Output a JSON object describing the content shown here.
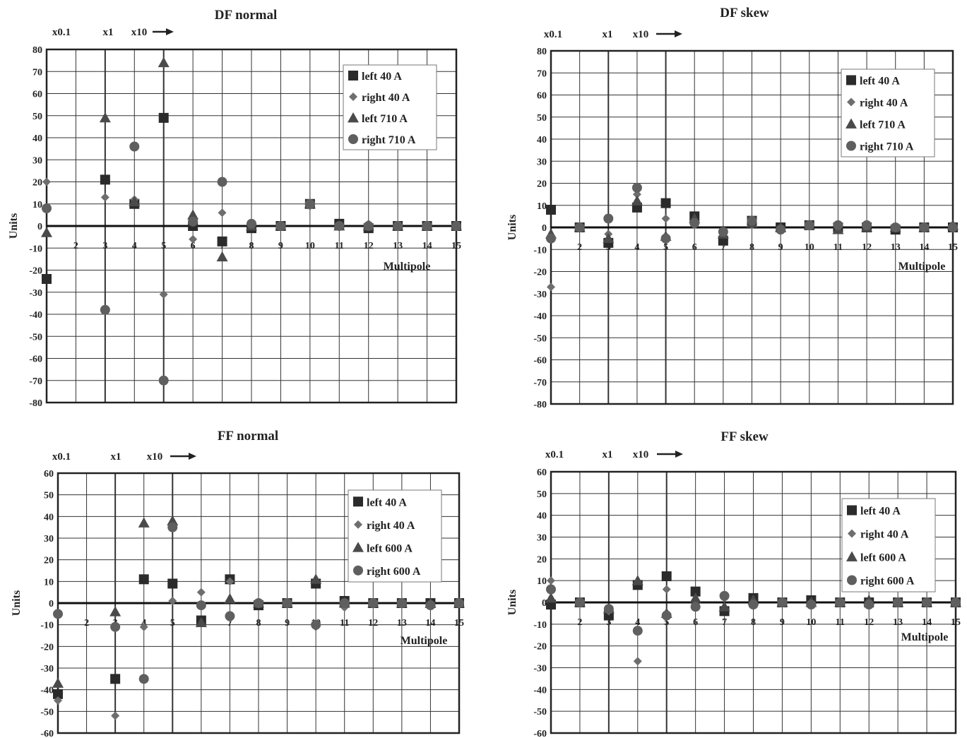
{
  "chart_data": [
    {
      "type": "scatter",
      "title": "DF normal",
      "xlabel": "Multipole",
      "ylabel": "Units",
      "scale_labels": [
        "x0.1",
        "x1",
        "x10"
      ],
      "scale_arrow": "→",
      "xlim": [
        1,
        15
      ],
      "ylim": [
        -80,
        80
      ],
      "ystep": 10,
      "grid": true,
      "legend_position": "top-right",
      "series": [
        {
          "name": "left 40 A",
          "marker": "square",
          "points": [
            [
              1,
              -24
            ],
            [
              3,
              21
            ],
            [
              4,
              10
            ],
            [
              5,
              49
            ],
            [
              6,
              0
            ],
            [
              7,
              -7
            ],
            [
              8,
              -1
            ],
            [
              9,
              0
            ],
            [
              10,
              10
            ],
            [
              11,
              1
            ],
            [
              12,
              -1
            ],
            [
              13,
              0
            ],
            [
              14,
              0
            ],
            [
              15,
              0
            ]
          ]
        },
        {
          "name": "right 40 A",
          "marker": "diamond",
          "points": [
            [
              1,
              20
            ],
            [
              3,
              13
            ],
            [
              4,
              12
            ],
            [
              5,
              -31
            ],
            [
              6,
              -6
            ],
            [
              7,
              6
            ],
            [
              8,
              0
            ],
            [
              9,
              0
            ],
            [
              10,
              9
            ],
            [
              11,
              0
            ],
            [
              12,
              1
            ],
            [
              13,
              0
            ],
            [
              14,
              0
            ],
            [
              15,
              0
            ]
          ]
        },
        {
          "name": "left 710 A",
          "marker": "triangle",
          "points": [
            [
              1,
              -3
            ],
            [
              3,
              49
            ],
            [
              4,
              11
            ],
            [
              5,
              74
            ],
            [
              6,
              5
            ],
            [
              7,
              -14
            ],
            [
              8,
              0
            ],
            [
              9,
              0
            ],
            [
              10,
              10
            ],
            [
              11,
              0
            ],
            [
              12,
              0
            ],
            [
              13,
              0
            ],
            [
              14,
              0
            ],
            [
              15,
              0
            ]
          ]
        },
        {
          "name": "right 710 A",
          "marker": "circle",
          "points": [
            [
              1,
              8
            ],
            [
              3,
              -38
            ],
            [
              4,
              36
            ],
            [
              5,
              -70
            ],
            [
              6,
              2
            ],
            [
              7,
              20
            ],
            [
              8,
              1
            ],
            [
              9,
              0
            ],
            [
              10,
              10
            ],
            [
              11,
              0
            ],
            [
              12,
              0
            ],
            [
              13,
              0
            ],
            [
              14,
              0
            ],
            [
              15,
              0
            ]
          ]
        }
      ]
    },
    {
      "type": "scatter",
      "title": "DF skew",
      "xlabel": "Multipole",
      "ylabel": "Units",
      "scale_labels": [
        "x0.1",
        "x1",
        "x10"
      ],
      "scale_arrow": "→",
      "xlim": [
        1,
        15
      ],
      "ylim": [
        -80,
        80
      ],
      "ystep": 10,
      "grid": true,
      "legend_position": "top-right",
      "series": [
        {
          "name": "left 40 A",
          "marker": "square",
          "points": [
            [
              1,
              8
            ],
            [
              2,
              0
            ],
            [
              3,
              -7
            ],
            [
              4,
              9
            ],
            [
              5,
              11
            ],
            [
              6,
              5
            ],
            [
              7,
              -6
            ],
            [
              8,
              3
            ],
            [
              9,
              0
            ],
            [
              10,
              1
            ],
            [
              11,
              0
            ],
            [
              12,
              0
            ],
            [
              13,
              -1
            ],
            [
              14,
              0
            ],
            [
              15,
              0
            ]
          ]
        },
        {
          "name": "right 40 A",
          "marker": "diamond",
          "points": [
            [
              1,
              -27
            ],
            [
              2,
              0
            ],
            [
              3,
              -3
            ],
            [
              4,
              15
            ],
            [
              5,
              4
            ],
            [
              6,
              1
            ],
            [
              7,
              -3
            ],
            [
              8,
              1
            ],
            [
              9,
              0
            ],
            [
              10,
              1
            ],
            [
              11,
              0
            ],
            [
              12,
              0
            ],
            [
              13,
              0
            ],
            [
              14,
              0
            ],
            [
              15,
              0
            ]
          ]
        },
        {
          "name": "left 710 A",
          "marker": "triangle",
          "points": [
            [
              1,
              -3
            ],
            [
              2,
              0
            ],
            [
              3,
              -5
            ],
            [
              4,
              12
            ],
            [
              5,
              -4
            ],
            [
              6,
              4
            ],
            [
              7,
              -3
            ],
            [
              8,
              2
            ],
            [
              9,
              0
            ],
            [
              10,
              1
            ],
            [
              11,
              -1
            ],
            [
              12,
              0
            ],
            [
              13,
              0
            ],
            [
              14,
              0
            ],
            [
              15,
              1
            ]
          ]
        },
        {
          "name": "right 710 A",
          "marker": "circle",
          "points": [
            [
              1,
              -5
            ],
            [
              2,
              0
            ],
            [
              3,
              4
            ],
            [
              4,
              18
            ],
            [
              5,
              -5
            ],
            [
              6,
              2
            ],
            [
              7,
              -2
            ],
            [
              8,
              3
            ],
            [
              9,
              -1
            ],
            [
              10,
              1
            ],
            [
              11,
              1
            ],
            [
              12,
              1
            ],
            [
              13,
              0
            ],
            [
              14,
              0
            ],
            [
              15,
              0
            ]
          ]
        }
      ]
    },
    {
      "type": "scatter",
      "title": "FF normal",
      "xlabel": "Multipole",
      "ylabel": "Units",
      "scale_labels": [
        "x0.1",
        "x1",
        "x10"
      ],
      "scale_arrow": "→",
      "xlim": [
        1,
        15
      ],
      "ylim": [
        -60,
        60
      ],
      "ystep": 10,
      "grid": true,
      "legend_position": "top-right",
      "series": [
        {
          "name": "left 40 A",
          "marker": "square",
          "points": [
            [
              1,
              -42
            ],
            [
              3,
              -35
            ],
            [
              4,
              11
            ],
            [
              5,
              9
            ],
            [
              6,
              -8
            ],
            [
              7,
              11
            ],
            [
              8,
              -1
            ],
            [
              9,
              0
            ],
            [
              10,
              9
            ],
            [
              11,
              1
            ],
            [
              12,
              0
            ],
            [
              13,
              0
            ],
            [
              14,
              0
            ],
            [
              15,
              0
            ]
          ]
        },
        {
          "name": "right 40 A",
          "marker": "diamond",
          "points": [
            [
              1,
              -45
            ],
            [
              3,
              -52
            ],
            [
              4,
              -11
            ],
            [
              5,
              1
            ],
            [
              6,
              5
            ],
            [
              7,
              10
            ],
            [
              8,
              0
            ],
            [
              9,
              0
            ],
            [
              10,
              -11
            ],
            [
              11,
              -2
            ],
            [
              12,
              0
            ],
            [
              13,
              0
            ],
            [
              14,
              0
            ],
            [
              15,
              0
            ]
          ]
        },
        {
          "name": "left 600 A",
          "marker": "triangle",
          "points": [
            [
              1,
              -37
            ],
            [
              3,
              -4
            ],
            [
              4,
              37
            ],
            [
              5,
              38
            ],
            [
              6,
              -9
            ],
            [
              7,
              2
            ],
            [
              8,
              0
            ],
            [
              9,
              0
            ],
            [
              10,
              11
            ],
            [
              11,
              0
            ],
            [
              12,
              0
            ],
            [
              13,
              0
            ],
            [
              14,
              0
            ],
            [
              15,
              0
            ]
          ]
        },
        {
          "name": "right 600 A",
          "marker": "circle",
          "points": [
            [
              1,
              -5
            ],
            [
              3,
              -11
            ],
            [
              4,
              -35
            ],
            [
              5,
              35
            ],
            [
              6,
              -1
            ],
            [
              7,
              -6
            ],
            [
              8,
              0
            ],
            [
              9,
              0
            ],
            [
              10,
              -10
            ],
            [
              11,
              0
            ],
            [
              12,
              0
            ],
            [
              13,
              0
            ],
            [
              14,
              -1
            ],
            [
              15,
              0
            ]
          ]
        }
      ]
    },
    {
      "type": "scatter",
      "title": "FF skew",
      "xlabel": "Multipole",
      "ylabel": "Units",
      "scale_labels": [
        "x0.1",
        "x1",
        "x10"
      ],
      "scale_arrow": "→",
      "xlim": [
        1,
        15
      ],
      "ylim": [
        -60,
        60
      ],
      "ystep": 10,
      "grid": true,
      "legend_position": "top-right",
      "series": [
        {
          "name": "left 40 A",
          "marker": "square",
          "points": [
            [
              1,
              -1
            ],
            [
              2,
              0
            ],
            [
              3,
              -6
            ],
            [
              4,
              8
            ],
            [
              5,
              12
            ],
            [
              6,
              5
            ],
            [
              7,
              -4
            ],
            [
              8,
              2
            ],
            [
              9,
              0
            ],
            [
              10,
              1
            ],
            [
              11,
              0
            ],
            [
              12,
              0
            ],
            [
              13,
              0
            ],
            [
              14,
              0
            ],
            [
              15,
              0
            ]
          ]
        },
        {
          "name": "right 40 A",
          "marker": "diamond",
          "points": [
            [
              1,
              10
            ],
            [
              2,
              0
            ],
            [
              3,
              -4
            ],
            [
              4,
              -27
            ],
            [
              5,
              6
            ],
            [
              6,
              -2
            ],
            [
              7,
              2
            ],
            [
              8,
              0
            ],
            [
              9,
              0
            ],
            [
              10,
              0
            ],
            [
              11,
              0
            ],
            [
              12,
              0
            ],
            [
              13,
              0
            ],
            [
              14,
              0
            ],
            [
              15,
              0
            ]
          ]
        },
        {
          "name": "left 600 A",
          "marker": "triangle",
          "points": [
            [
              1,
              2
            ],
            [
              2,
              0
            ],
            [
              3,
              -3
            ],
            [
              4,
              10
            ],
            [
              5,
              -5
            ],
            [
              6,
              2
            ],
            [
              7,
              -2
            ],
            [
              8,
              1
            ],
            [
              9,
              0
            ],
            [
              10,
              0
            ],
            [
              11,
              0
            ],
            [
              12,
              1
            ],
            [
              13,
              0
            ],
            [
              14,
              0
            ],
            [
              15,
              0
            ]
          ]
        },
        {
          "name": "right 600 A",
          "marker": "circle",
          "points": [
            [
              1,
              6
            ],
            [
              2,
              0
            ],
            [
              3,
              -3
            ],
            [
              4,
              -13
            ],
            [
              5,
              -6
            ],
            [
              6,
              -2
            ],
            [
              7,
              3
            ],
            [
              8,
              -1
            ],
            [
              9,
              0
            ],
            [
              10,
              -1
            ],
            [
              11,
              0
            ],
            [
              12,
              -1
            ],
            [
              13,
              0
            ],
            [
              14,
              0
            ],
            [
              15,
              0
            ]
          ]
        }
      ]
    }
  ]
}
